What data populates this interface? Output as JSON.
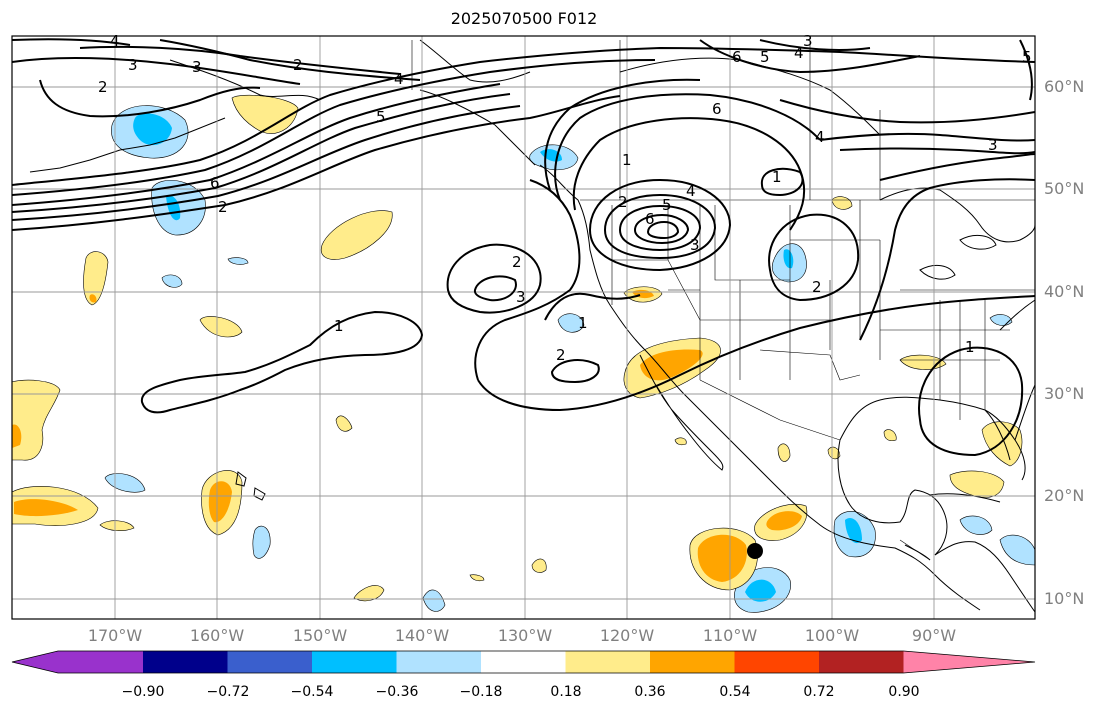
{
  "title": "2025070500 F012",
  "lat_labels": [
    "60°N",
    "50°N",
    "40°N",
    "30°N",
    "20°N",
    "10°N"
  ],
  "lon_labels": [
    "170°W",
    "160°W",
    "150°W",
    "140°W",
    "130°W",
    "120°W",
    "110°W",
    "100°W",
    "90°W"
  ],
  "colorbar": {
    "ticks": [
      "−0.90",
      "−0.72",
      "−0.54",
      "−0.36",
      "−0.18",
      "0.18",
      "0.36",
      "0.54",
      "0.72",
      "0.90"
    ],
    "colors": [
      "#9932cc",
      "#00008b",
      "#3a5fcd",
      "#00bfff",
      "#b0e2ff",
      "#ffffff",
      "#ffec8b",
      "#ffa500",
      "#ff4500",
      "#b22222",
      "#ff83a8"
    ]
  },
  "contour_labels": [
    "1",
    "2",
    "3",
    "4",
    "5",
    "6"
  ],
  "marker": "storm-center"
}
